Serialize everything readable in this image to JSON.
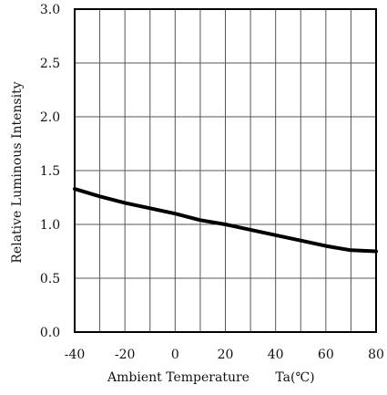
{
  "chart_data": {
    "type": "line",
    "title": "",
    "xlabel": "Ambient Temperature",
    "xlabel_unit": "Ta(℃)",
    "ylabel": "Relative Luminous Intensity",
    "xlim": [
      -40,
      80
    ],
    "ylim": [
      0,
      3.0
    ],
    "x_ticks": [
      -40,
      -30,
      -20,
      -10,
      0,
      10,
      20,
      30,
      40,
      50,
      60,
      70,
      80
    ],
    "x_tick_labels": [
      "-40",
      "",
      "-20",
      "",
      "0",
      "",
      "20",
      "",
      "40",
      "",
      "60",
      "",
      "80"
    ],
    "y_ticks": [
      0,
      0.5,
      1.0,
      1.5,
      2.0,
      2.5,
      3.0
    ],
    "y_tick_labels": [
      "0.0",
      "0.5",
      "1.0",
      "1.5",
      "2.0",
      "2.5",
      "3.0"
    ],
    "x_grid": [
      -30,
      -20,
      -10,
      0,
      10,
      20,
      30,
      40,
      50,
      60,
      70
    ],
    "y_grid": [
      0.5,
      1.0,
      1.5,
      2.0,
      2.5
    ],
    "grid": true,
    "series": [
      {
        "x": [
          -40,
          -30,
          -20,
          -10,
          0,
          10,
          20,
          30,
          40,
          50,
          60,
          70,
          80
        ],
        "values": [
          1.33,
          1.26,
          1.2,
          1.15,
          1.1,
          1.04,
          1.0,
          0.95,
          0.9,
          0.85,
          0.8,
          0.76,
          0.75
        ]
      }
    ],
    "colors": {
      "line": "#000000",
      "grid": "#555555",
      "frame": "#000000"
    }
  }
}
